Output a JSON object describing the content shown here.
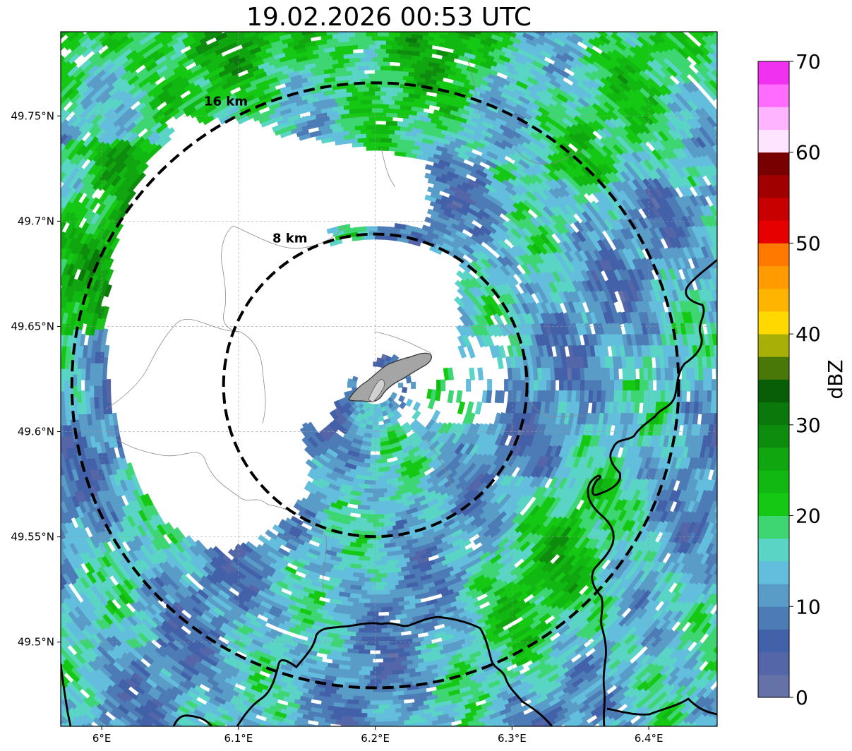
{
  "title": "19.02.2026 00:53 UTC",
  "map": {
    "lon_range": [
      5.97,
      6.45
    ],
    "lat_range": [
      49.46,
      49.79
    ],
    "center": {
      "lon": 6.2,
      "lat": 49.622
    },
    "x_ticks": [
      {
        "value": 6.0,
        "label": "6°E"
      },
      {
        "value": 6.1,
        "label": "6.1°E"
      },
      {
        "value": 6.2,
        "label": "6.2°E"
      },
      {
        "value": 6.3,
        "label": "6.3°E"
      },
      {
        "value": 6.4,
        "label": "6.4°E"
      }
    ],
    "y_ticks": [
      {
        "value": 49.75,
        "label": "49.75°N"
      },
      {
        "value": 49.7,
        "label": "49.7°N"
      },
      {
        "value": 49.65,
        "label": "49.65°N"
      },
      {
        "value": 49.6,
        "label": "49.6°N"
      },
      {
        "value": 49.55,
        "label": "49.55°N"
      },
      {
        "value": 49.5,
        "label": "49.5°N"
      }
    ],
    "range_rings": [
      {
        "radius_km": 8,
        "label": "8 km"
      },
      {
        "radius_km": 16,
        "label": "16 km"
      }
    ],
    "gridlines": true
  },
  "colorbar": {
    "label": "dBZ",
    "min": 0,
    "max": 70,
    "step": 2.5,
    "ticks": [
      0,
      10,
      20,
      30,
      40,
      50,
      60,
      70
    ],
    "colors": [
      "#6472a8",
      "#5566a8",
      "#4361a8",
      "#4c7bb6",
      "#5a9cc8",
      "#63bedd",
      "#5ad4c4",
      "#3ed672",
      "#14c814",
      "#12b812",
      "#10a610",
      "#0e8c0e",
      "#0a780a",
      "#075e07",
      "#4a7808",
      "#a8b008",
      "#ffd800",
      "#ffb400",
      "#ff9a00",
      "#ff7800",
      "#e60000",
      "#c80000",
      "#a00000",
      "#780000",
      "#ffe4ff",
      "#ffb4ff",
      "#ff6cff",
      "#f032f0"
    ]
  }
}
